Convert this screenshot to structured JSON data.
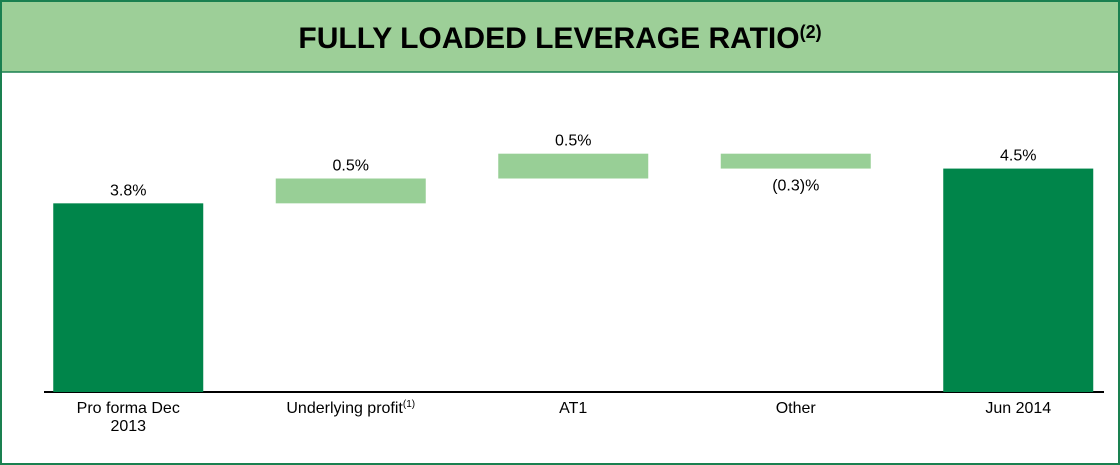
{
  "chart_data": {
    "type": "waterfall",
    "title": "FULLY LOADED LEVERAGE RATIO",
    "title_note": "(2)",
    "categories": [
      "Pro forma Dec 2013",
      "Underlying profit",
      "AT1",
      "Other",
      "Jun 2014"
    ],
    "category_notes": [
      null,
      "(1)",
      null,
      null,
      null
    ],
    "values": [
      3.8,
      0.5,
      0.5,
      -0.3,
      4.5
    ],
    "value_labels": [
      "3.8%",
      "0.5%",
      "0.5%",
      "(0.3)%",
      "4.5%"
    ],
    "is_total": [
      true,
      false,
      false,
      false,
      true
    ],
    "total_color": "#00854a",
    "change_color": "#98cf96",
    "ylim": [
      0,
      5.7
    ]
  }
}
